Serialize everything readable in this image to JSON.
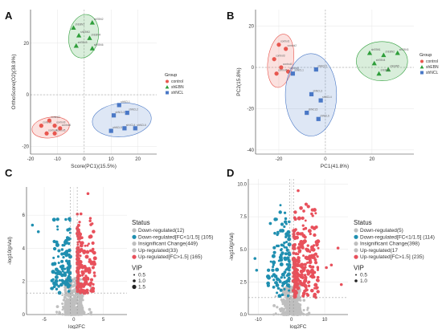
{
  "panel_labels": [
    "A",
    "B",
    "C",
    "D"
  ],
  "colors": {
    "control": "#e8574f",
    "shEBN": "#2e9e3a",
    "shNCL": "#4a78c6",
    "down_fc": "#1f8fb0",
    "insig": "#bfbfbf",
    "up": "#e8505b",
    "grid": "#e6e6e6"
  },
  "chart_data": [
    {
      "id": "A",
      "type": "scatter",
      "xlabel": "Score(PC1)(15.5%)",
      "ylabel": "OrthoScore(O2)(38.9%)",
      "xlim": [
        -20,
        27
      ],
      "ylim": [
        -23,
        33
      ],
      "xticks": [
        -20,
        -10,
        0,
        10,
        20
      ],
      "yticks": [
        -20,
        0,
        20
      ],
      "legend_title": "Group",
      "groups": [
        {
          "name": "control",
          "shape": "circle",
          "color": "#e8574f",
          "points": [
            {
              "x": -16,
              "y": -12,
              "label": "control1"
            },
            {
              "x": -13,
              "y": -10,
              "label": "control2"
            },
            {
              "x": -11,
              "y": -12,
              "label": "control3"
            },
            {
              "x": -14,
              "y": -15,
              "label": "control4"
            },
            {
              "x": -11,
              "y": -15,
              "label": "control5"
            },
            {
              "x": -9,
              "y": -13,
              "label": "control6"
            }
          ],
          "ellipse": {
            "cx": -12.5,
            "cy": -12.7,
            "rx": 7,
            "ry": 4,
            "angle": -8
          }
        },
        {
          "name": "shEBN",
          "shape": "triangle",
          "color": "#2e9e3a",
          "points": [
            {
              "x": -4,
              "y": 26,
              "label": "shEBN1"
            },
            {
              "x": 3,
              "y": 28,
              "label": "shEBN2"
            },
            {
              "x": -2,
              "y": 23,
              "label": "shEBN3"
            },
            {
              "x": 2,
              "y": 22,
              "label": "shEBN4"
            },
            {
              "x": -3,
              "y": 19,
              "label": "shEBN5"
            },
            {
              "x": 3,
              "y": 18,
              "label": "shEBN6"
            }
          ],
          "ellipse": {
            "cx": -0.2,
            "cy": 22.7,
            "rx": 5.5,
            "ry": 8.5,
            "angle": 10
          }
        },
        {
          "name": "shNCL",
          "shape": "square",
          "color": "#4a78c6",
          "points": [
            {
              "x": 13,
              "y": -4,
              "label": "shNCL1"
            },
            {
              "x": 16,
              "y": -7,
              "label": "shNCL2"
            },
            {
              "x": 11,
              "y": -8,
              "label": "shNCL3"
            },
            {
              "x": 15,
              "y": -13,
              "label": "shNCL4"
            },
            {
              "x": 10,
              "y": -14,
              "label": "shNCL5"
            },
            {
              "x": 19,
              "y": -13,
              "label": "shNCL6"
            }
          ],
          "ellipse": {
            "cx": 14,
            "cy": -9.8,
            "rx": 11,
            "ry": 6.5,
            "angle": -5
          }
        }
      ]
    },
    {
      "id": "B",
      "type": "scatter",
      "xlabel": "PC1(41.8%)",
      "ylabel": "PC2(15.8%)",
      "xlim": [
        -30,
        38
      ],
      "ylim": [
        -42,
        28
      ],
      "xticks": [
        -20,
        0,
        20
      ],
      "yticks": [
        -40,
        -20,
        0,
        20
      ],
      "legend_title": "Group",
      "groups": [
        {
          "name": "control",
          "shape": "circle",
          "color": "#e8574f",
          "points": [
            {
              "x": -20,
              "y": 11,
              "label": "control1"
            },
            {
              "x": -17,
              "y": 9,
              "label": "control2"
            },
            {
              "x": -22,
              "y": 4,
              "label": "control3"
            },
            {
              "x": -19,
              "y": 0,
              "label": "control4"
            },
            {
              "x": -16,
              "y": -2,
              "label": "control5"
            },
            {
              "x": -21,
              "y": -3,
              "label": "control6"
            }
          ],
          "ellipse": {
            "cx": -19.2,
            "cy": 3.2,
            "rx": 5.5,
            "ry": 13,
            "angle": 8
          }
        },
        {
          "name": "shEBN",
          "shape": "triangle",
          "color": "#2e9e3a",
          "points": [
            {
              "x": 19,
              "y": 7,
              "label": "shEBN1"
            },
            {
              "x": 25,
              "y": 6,
              "label": "shEBN2"
            },
            {
              "x": 31,
              "y": 7,
              "label": "shEBN3"
            },
            {
              "x": 21,
              "y": 2,
              "label": "shEBN4"
            },
            {
              "x": 27,
              "y": -1,
              "label": "shEBN5"
            },
            {
              "x": 23,
              "y": -3,
              "label": "shEBN6"
            }
          ],
          "ellipse": {
            "cx": 24.3,
            "cy": 3,
            "rx": 11,
            "ry": 9.5,
            "angle": 0
          }
        },
        {
          "name": "shNCL",
          "shape": "square",
          "color": "#4a78c6",
          "points": [
            {
              "x": -14,
              "y": -3,
              "label": "shNCL1"
            },
            {
              "x": -4,
              "y": -1,
              "label": "shNCL2"
            },
            {
              "x": -6,
              "y": -13,
              "label": "shNCL3"
            },
            {
              "x": -2,
              "y": -16,
              "label": "shNCL4"
            },
            {
              "x": -8,
              "y": -22,
              "label": "shNCL5"
            },
            {
              "x": -3,
              "y": -25,
              "label": "shNCL6"
            }
          ],
          "ellipse": {
            "cx": -6.2,
            "cy": -13.3,
            "rx": 11,
            "ry": 20,
            "angle": 0
          }
        }
      ]
    },
    {
      "id": "C",
      "type": "scatter",
      "xlabel": "log2FC",
      "ylabel": "-log10(pVal)",
      "xlim": [
        -8,
        9
      ],
      "ylim": [
        0,
        7.7
      ],
      "xticks": [
        -5,
        0,
        5
      ],
      "yticks": [
        0,
        2,
        4,
        6
      ],
      "pval_line": 1.3,
      "fc_lines": [
        -0.58,
        0.58
      ],
      "legend_title": "Status",
      "status_entries": [
        "Down-regulated(12)",
        "Down-regulated[FC<1/1.5] (105)",
        "Insignificant Change(449)",
        "Up-regulated(33)",
        "Up-regulated[FC>1.5] (165)"
      ],
      "vip_title": "VIP",
      "vip_entries": [
        "0.5",
        "1.0",
        "1.5"
      ],
      "counts": {
        "down": 12,
        "down_fc": 105,
        "insig": 449,
        "up": 33,
        "up_fc": 165
      }
    },
    {
      "id": "D",
      "type": "scatter",
      "xlabel": "log2FC",
      "ylabel": "-log10(pVal)",
      "xlim": [
        -13,
        17
      ],
      "ylim": [
        0,
        10.4
      ],
      "xticks": [
        -10,
        0,
        10
      ],
      "yticks": [
        0.0,
        2.5,
        5.0,
        7.5,
        10.0
      ],
      "pval_line": 1.3,
      "fc_lines": [
        -0.58,
        0.58
      ],
      "legend_title": "Status",
      "status_entries": [
        "Down-regulated(5)",
        "Down-regulated[FC<1/1.5] (114)",
        "Insignificant Change(398)",
        "Up-regulated(17",
        "Up-regulated[FC>1.5] (235)"
      ],
      "vip_title": "VIP",
      "vip_entries": [
        "0.5",
        "1.0"
      ],
      "counts": {
        "down": 5,
        "down_fc": 114,
        "insig": 398,
        "up": 17,
        "up_fc": 235
      }
    }
  ]
}
